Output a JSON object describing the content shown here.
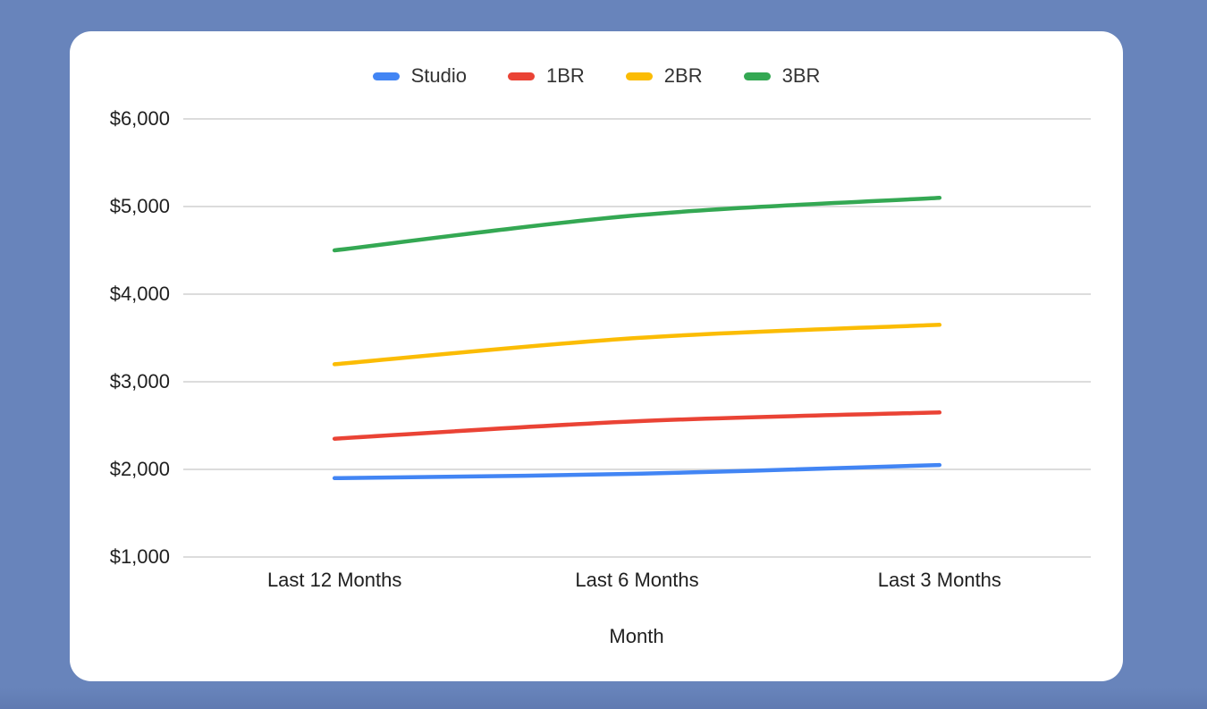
{
  "page": {
    "background_color": "#6884bb",
    "card_color": "#ffffff"
  },
  "chart_data": {
    "type": "line",
    "title": "",
    "xlabel": "Month",
    "ylabel": "",
    "categories": [
      "Last 12 Months",
      "Last 6 Months",
      "Last 3 Months"
    ],
    "series": [
      {
        "name": "Studio",
        "color": "#4285F4",
        "values": [
          1900,
          1950,
          2050
        ]
      },
      {
        "name": "1BR",
        "color": "#EA4335",
        "values": [
          2350,
          2550,
          2650
        ]
      },
      {
        "name": "2BR",
        "color": "#FBBC04",
        "values": [
          3200,
          3500,
          3650
        ]
      },
      {
        "name": "3BR",
        "color": "#34A853",
        "values": [
          4500,
          4900,
          5100
        ]
      }
    ],
    "ylim": [
      1000,
      6000
    ],
    "y_tick_step": 1000,
    "y_ticks": [
      {
        "value": 6000,
        "label": "$6,000"
      },
      {
        "value": 5000,
        "label": "$5,000"
      },
      {
        "value": 4000,
        "label": "$4,000"
      },
      {
        "value": 3000,
        "label": "$3,000"
      },
      {
        "value": 2000,
        "label": "$2,000"
      },
      {
        "value": 1000,
        "label": "$1,000"
      }
    ],
    "grid": true,
    "gridline_color": "#dcdcdc",
    "legend_position": "top",
    "smooth": true
  }
}
